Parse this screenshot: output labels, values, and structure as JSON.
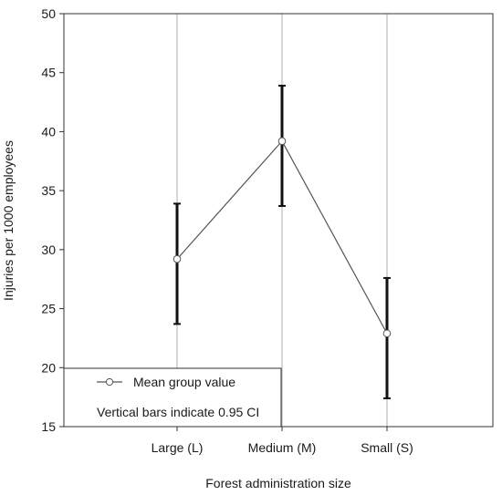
{
  "chart_data": {
    "type": "line",
    "categories": [
      "Large (L)",
      "Medium (M)",
      "Small (S)"
    ],
    "series": [
      {
        "values": [
          29.2,
          39.2,
          22.9
        ],
        "ci_lower": [
          23.7,
          33.7,
          17.4
        ],
        "ci_upper": [
          33.9,
          43.9,
          27.6
        ]
      }
    ],
    "xlabel": "Forest administration size",
    "ylabel": "Injuries per 1000 employees",
    "ylim": [
      15,
      50
    ],
    "yticks": [
      15,
      20,
      25,
      30,
      35,
      40,
      45,
      50
    ],
    "grid": "vertical lines at categories",
    "legend": {
      "placement": "bottom-left",
      "entry": "Mean group value",
      "note": "Vertical bars indicate 0.95 CI"
    },
    "colors": {
      "line": "#555555",
      "error_bars": "#111111",
      "marker_fill": "#ffffff",
      "grid": "#999999"
    }
  }
}
